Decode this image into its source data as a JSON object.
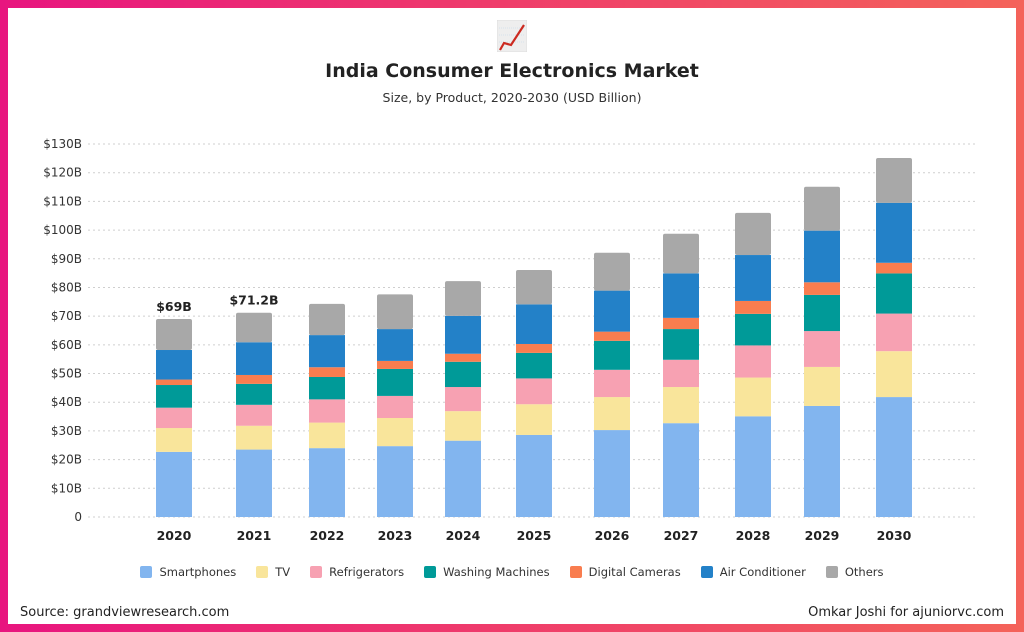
{
  "header": {
    "logo_icon": "chart-increasing-icon",
    "title": "India Consumer Electronics Market",
    "subtitle": "Size, by Product, 2020-2030 (USD Billion)"
  },
  "chart_data": {
    "type": "bar",
    "stacked": true,
    "title": "India Consumer Electronics Market",
    "subtitle": "Size, by Product, 2020-2030 (USD Billion)",
    "xlabel": "",
    "ylabel": "",
    "ylim": [
      0,
      130
    ],
    "y_ticks": [
      "0",
      "$10B",
      "$20B",
      "$30B",
      "$40B",
      "$50B",
      "$60B",
      "$70B",
      "$80B",
      "$90B",
      "$100B",
      "$110B",
      "$120B",
      "$130B"
    ],
    "grid": true,
    "legend_position": "bottom",
    "categories": [
      "2020",
      "2021",
      "2022",
      "2023",
      "2024",
      "2025",
      "2026",
      "2027",
      "2028",
      "2029",
      "2030"
    ],
    "series": [
      {
        "name": "Smartphones",
        "color": "#82b5ef",
        "values": [
          22.7,
          23.5,
          24.0,
          24.7,
          26.6,
          28.6,
          30.3,
          32.7,
          35.1,
          38.7,
          41.8
        ]
      },
      {
        "name": "TV",
        "color": "#f9e59b",
        "values": [
          8.3,
          8.3,
          8.9,
          9.8,
          10.3,
          10.7,
          11.5,
          12.6,
          13.5,
          13.6,
          16.0
        ]
      },
      {
        "name": "Refrigerators",
        "color": "#f7a1b2",
        "values": [
          7.1,
          7.3,
          8.1,
          7.7,
          8.4,
          9.0,
          9.5,
          9.5,
          11.2,
          12.5,
          13.1
        ]
      },
      {
        "name": "Washing Machines",
        "color": "#009a98",
        "values": [
          7.9,
          7.3,
          7.8,
          9.4,
          8.8,
          8.9,
          10.1,
          10.7,
          11.0,
          12.6,
          14.0
        ]
      },
      {
        "name": "Digital Cameras",
        "color": "#f97d4f",
        "values": [
          1.9,
          3.1,
          3.4,
          2.8,
          2.8,
          3.1,
          3.2,
          3.9,
          4.5,
          4.4,
          3.7
        ]
      },
      {
        "name": "Air Conditioner",
        "color": "#2381c8",
        "values": [
          10.3,
          11.4,
          11.2,
          11.1,
          13.2,
          13.8,
          14.3,
          15.5,
          16.0,
          18.0,
          20.9
        ]
      },
      {
        "name": "Others",
        "color": "#a8a8a8",
        "values": [
          10.8,
          10.3,
          10.9,
          12.1,
          12.1,
          12.0,
          13.2,
          13.8,
          14.7,
          15.3,
          15.6
        ]
      }
    ],
    "annotations": [
      {
        "category": "2020",
        "text": "$69B"
      },
      {
        "category": "2021",
        "text": "$71.2B"
      }
    ]
  },
  "footer": {
    "source": "Source: grandviewresearch.com",
    "credit": "Omkar Joshi for ajuniorvc.com"
  }
}
